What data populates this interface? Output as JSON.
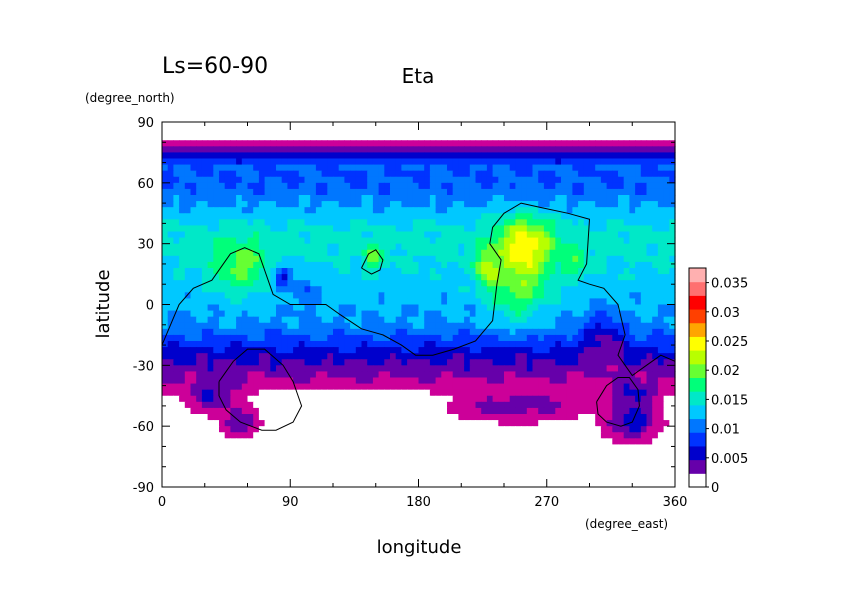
{
  "chart_data": {
    "type": "heatmap",
    "title": "Eta",
    "subtitle": "Ls=60-90",
    "xlabel": "longitude",
    "ylabel": "latitude",
    "x_units": "(degree_east)",
    "y_units": "(degree_north)",
    "xlim": [
      0,
      360
    ],
    "ylim": [
      -90,
      90
    ],
    "x_ticks": [
      "0",
      "90",
      "180",
      "270",
      "360"
    ],
    "y_ticks": [
      "90",
      "60",
      "30",
      "0",
      "-30",
      "-60",
      "-90"
    ],
    "x_tick_values": [
      0,
      90,
      180,
      270,
      360
    ],
    "y_tick_values": [
      90,
      60,
      30,
      0,
      -30,
      -60,
      -90
    ],
    "colorbar": {
      "tick_labels": [
        "0.035",
        "0.03",
        "0.025",
        "0.02",
        "0.015",
        "0.01",
        "0.005",
        "0"
      ],
      "tick_values": [
        0.035,
        0.03,
        0.025,
        0.02,
        0.015,
        0.01,
        0.005,
        0
      ],
      "min": 0,
      "max": 0.0375,
      "step": 0.0025,
      "colors": [
        "#ffffff",
        "#cc0099",
        "#6600aa",
        "#0000cc",
        "#0033ff",
        "#0077ff",
        "#00c8ff",
        "#00e8c8",
        "#00ff7a",
        "#66ff33",
        "#b8ff00",
        "#ffff00",
        "#ffa500",
        "#ff4000",
        "#ff0000",
        "#ff7070",
        "#ffb0b0"
      ]
    },
    "lat_profile": [
      {
        "lat": 90,
        "v": 0
      },
      {
        "lat": 80,
        "v": 0
      },
      {
        "lat": 78,
        "v": 0.0025
      },
      {
        "lat": 74,
        "v": 0.006
      },
      {
        "lat": 68,
        "v": 0.01
      },
      {
        "lat": 60,
        "v": 0.01
      },
      {
        "lat": 50,
        "v": 0.012
      },
      {
        "lat": 40,
        "v": 0.015
      },
      {
        "lat": 30,
        "v": 0.016
      },
      {
        "lat": 20,
        "v": 0.015
      },
      {
        "lat": 10,
        "v": 0.014
      },
      {
        "lat": 0,
        "v": 0.013
      },
      {
        "lat": -10,
        "v": 0.012
      },
      {
        "lat": -18,
        "v": 0.009
      },
      {
        "lat": -25,
        "v": 0.006
      },
      {
        "lat": -33,
        "v": 0.0035
      },
      {
        "lat": -40,
        "v": 0.0015
      },
      {
        "lat": -45,
        "v": 0
      },
      {
        "lat": -90,
        "v": 0
      }
    ],
    "hotspots": [
      {
        "lon": 55,
        "lat": 18,
        "amp": 0.006,
        "slon": 20,
        "slat": 14
      },
      {
        "lon": 148,
        "lat": 23,
        "amp": 0.006,
        "slon": 7,
        "slat": 6
      },
      {
        "lon": 228,
        "lat": 18,
        "amp": 0.008,
        "slon": 7,
        "slat": 8
      },
      {
        "lon": 255,
        "lat": 30,
        "amp": 0.01,
        "slon": 20,
        "slat": 14
      },
      {
        "lon": 250,
        "lat": 8,
        "amp": 0.007,
        "slon": 22,
        "slat": 16
      },
      {
        "lon": 290,
        "lat": 20,
        "amp": 0.004,
        "slon": 8,
        "slat": 8
      },
      {
        "lon": 84,
        "lat": 14,
        "amp": -0.008,
        "slon": 6,
        "slat": 6
      },
      {
        "lon": 100,
        "lat": 8,
        "amp": -0.004,
        "slon": 8,
        "slat": 8
      },
      {
        "lon": 310,
        "lat": -15,
        "amp": -0.005,
        "slon": 15,
        "slat": 12
      },
      {
        "lon": 330,
        "lat": -45,
        "amp": 0.006,
        "slon": 15,
        "slat": 6
      },
      {
        "lon": 250,
        "lat": -50,
        "amp": 0.0045,
        "slon": 35,
        "slat": 6
      },
      {
        "lon": 330,
        "lat": -58,
        "amp": 0.007,
        "slon": 15,
        "slat": 7
      },
      {
        "lon": 35,
        "lat": -45,
        "amp": 0.005,
        "slon": 15,
        "slat": 7
      },
      {
        "lon": 55,
        "lat": -58,
        "amp": 0.005,
        "slon": 10,
        "slat": 6
      }
    ],
    "contours": [
      {
        "name": "continent-outline",
        "points": [
          [
            0,
            -20
          ],
          [
            12,
            0
          ],
          [
            22,
            8
          ],
          [
            35,
            12
          ],
          [
            48,
            25
          ],
          [
            58,
            28
          ],
          [
            68,
            25
          ],
          [
            78,
            5
          ],
          [
            90,
            0
          ],
          [
            115,
            0
          ],
          [
            125,
            -5
          ],
          [
            140,
            -12
          ],
          [
            155,
            -15
          ],
          [
            168,
            -20
          ],
          [
            178,
            -25
          ],
          [
            190,
            -25
          ],
          [
            205,
            -22
          ],
          [
            220,
            -18
          ],
          [
            232,
            -8
          ],
          [
            235,
            10
          ],
          [
            238,
            22
          ],
          [
            230,
            30
          ],
          [
            232,
            38
          ],
          [
            240,
            45
          ],
          [
            252,
            50
          ],
          [
            265,
            48
          ],
          [
            285,
            45
          ],
          [
            300,
            42
          ],
          [
            298,
            20
          ],
          [
            292,
            12
          ],
          [
            300,
            10
          ],
          [
            310,
            8
          ],
          [
            320,
            0
          ],
          [
            325,
            -15
          ],
          [
            320,
            -25
          ],
          [
            330,
            -35
          ],
          [
            340,
            -30
          ],
          [
            350,
            -25
          ],
          [
            360,
            -28
          ]
        ]
      },
      {
        "name": "crater-outline-left",
        "points": [
          [
            40,
            -38
          ],
          [
            50,
            -28
          ],
          [
            60,
            -22
          ],
          [
            72,
            -22
          ],
          [
            85,
            -30
          ],
          [
            92,
            -38
          ],
          [
            98,
            -50
          ],
          [
            92,
            -58
          ],
          [
            80,
            -62
          ],
          [
            70,
            -62
          ],
          [
            55,
            -58
          ],
          [
            45,
            -52
          ],
          [
            40,
            -45
          ],
          [
            40,
            -38
          ]
        ]
      },
      {
        "name": "crater-outline-right",
        "points": [
          [
            305,
            -48
          ],
          [
            312,
            -40
          ],
          [
            320,
            -36
          ],
          [
            328,
            -36
          ],
          [
            334,
            -42
          ],
          [
            335,
            -50
          ],
          [
            330,
            -58
          ],
          [
            322,
            -60
          ],
          [
            312,
            -58
          ],
          [
            306,
            -54
          ],
          [
            305,
            -48
          ]
        ]
      },
      {
        "name": "blob-outline",
        "points": [
          [
            140,
            18
          ],
          [
            145,
            25
          ],
          [
            150,
            27
          ],
          [
            155,
            22
          ],
          [
            153,
            17
          ],
          [
            147,
            15
          ],
          [
            140,
            18
          ]
        ]
      }
    ]
  }
}
